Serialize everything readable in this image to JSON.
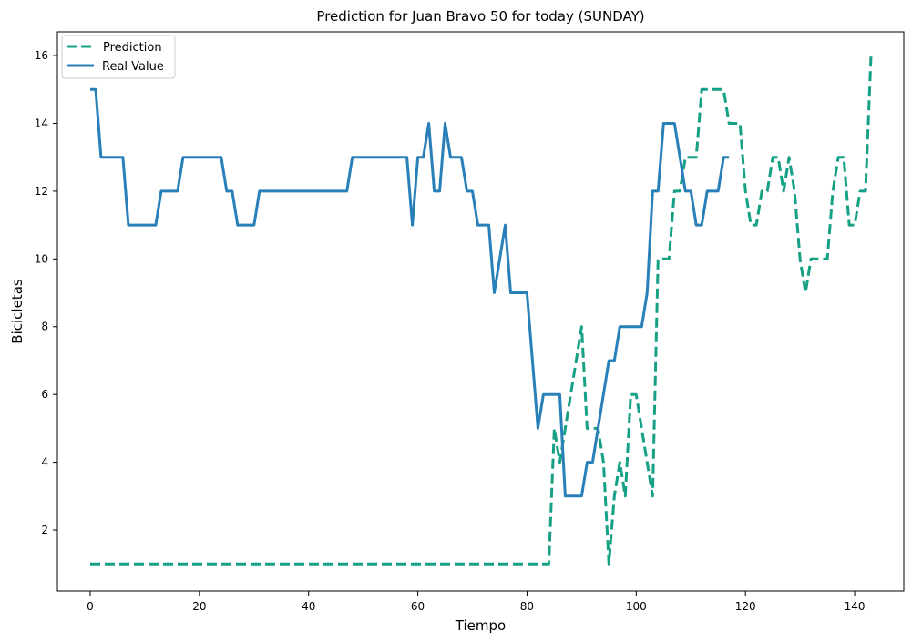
{
  "chart_data": {
    "type": "line",
    "title": "Prediction for Juan Bravo 50 for today (SUNDAY)",
    "xlabel": "Tiempo",
    "ylabel": "Bicicletas",
    "xlim": [
      -6,
      149
    ],
    "ylim": [
      0.2,
      16.7
    ],
    "xticks": [
      0,
      20,
      40,
      60,
      80,
      100,
      120,
      140
    ],
    "yticks": [
      2,
      4,
      6,
      8,
      10,
      12,
      14,
      16
    ],
    "grid": false,
    "legend": {
      "placement": "top-left"
    },
    "series": [
      {
        "name": "Prediction",
        "color": "#16a085",
        "style": "dashed",
        "points": [
          [
            0,
            1
          ],
          [
            84,
            1
          ],
          [
            85,
            5
          ],
          [
            86,
            4
          ],
          [
            87,
            5
          ],
          [
            90,
            8
          ],
          [
            91,
            5
          ],
          [
            93,
            5
          ],
          [
            94,
            4
          ],
          [
            95,
            1
          ],
          [
            96,
            3
          ],
          [
            97,
            4
          ],
          [
            98,
            3
          ],
          [
            99,
            6
          ],
          [
            100,
            6
          ],
          [
            101,
            5
          ],
          [
            103,
            3
          ],
          [
            104,
            10
          ],
          [
            106,
            10
          ],
          [
            107,
            12
          ],
          [
            108,
            12
          ],
          [
            109,
            13
          ],
          [
            110,
            13
          ],
          [
            111,
            13
          ],
          [
            112,
            15
          ],
          [
            116,
            15
          ],
          [
            117,
            14
          ],
          [
            119,
            14
          ],
          [
            120,
            12
          ],
          [
            121,
            11
          ],
          [
            122,
            11
          ],
          [
            123,
            12
          ],
          [
            124,
            12
          ],
          [
            125,
            13
          ],
          [
            126,
            13
          ],
          [
            127,
            12
          ],
          [
            128,
            13
          ],
          [
            129,
            12
          ],
          [
            130,
            10
          ],
          [
            131,
            9
          ],
          [
            132,
            10
          ],
          [
            134,
            10
          ],
          [
            135,
            10
          ],
          [
            136,
            12
          ],
          [
            137,
            13
          ],
          [
            138,
            13
          ],
          [
            139,
            11
          ],
          [
            140,
            11
          ],
          [
            141,
            12
          ],
          [
            142,
            12
          ],
          [
            143,
            16
          ]
        ]
      },
      {
        "name": "Real Value",
        "color": "#2980b9",
        "style": "solid",
        "points": [
          [
            0,
            15
          ],
          [
            1,
            15
          ],
          [
            2,
            13
          ],
          [
            6,
            13
          ],
          [
            7,
            11
          ],
          [
            12,
            11
          ],
          [
            13,
            12
          ],
          [
            16,
            12
          ],
          [
            17,
            13
          ],
          [
            24,
            13
          ],
          [
            25,
            12
          ],
          [
            26,
            12
          ],
          [
            27,
            11
          ],
          [
            30,
            11
          ],
          [
            31,
            12
          ],
          [
            47,
            12
          ],
          [
            48,
            13
          ],
          [
            58,
            13
          ],
          [
            59,
            11
          ],
          [
            60,
            13
          ],
          [
            61,
            13
          ],
          [
            62,
            14
          ],
          [
            63,
            12
          ],
          [
            64,
            12
          ],
          [
            65,
            14
          ],
          [
            66,
            13
          ],
          [
            68,
            13
          ],
          [
            69,
            12
          ],
          [
            70,
            12
          ],
          [
            71,
            11
          ],
          [
            73,
            11
          ],
          [
            74,
            9
          ],
          [
            76,
            11
          ],
          [
            77,
            9
          ],
          [
            80,
            9
          ],
          [
            82,
            5
          ],
          [
            83,
            6
          ],
          [
            86,
            6
          ],
          [
            87,
            3
          ],
          [
            90,
            3
          ],
          [
            91,
            4
          ],
          [
            92,
            4
          ],
          [
            95,
            7
          ],
          [
            96,
            7
          ],
          [
            97,
            8
          ],
          [
            101,
            8
          ],
          [
            102,
            9
          ],
          [
            103,
            12
          ],
          [
            104,
            12
          ],
          [
            105,
            14
          ],
          [
            107,
            14
          ],
          [
            109,
            12
          ],
          [
            110,
            12
          ],
          [
            111,
            11
          ],
          [
            112,
            11
          ],
          [
            113,
            12
          ],
          [
            115,
            12
          ],
          [
            116,
            13
          ],
          [
            117,
            13
          ]
        ]
      }
    ]
  }
}
